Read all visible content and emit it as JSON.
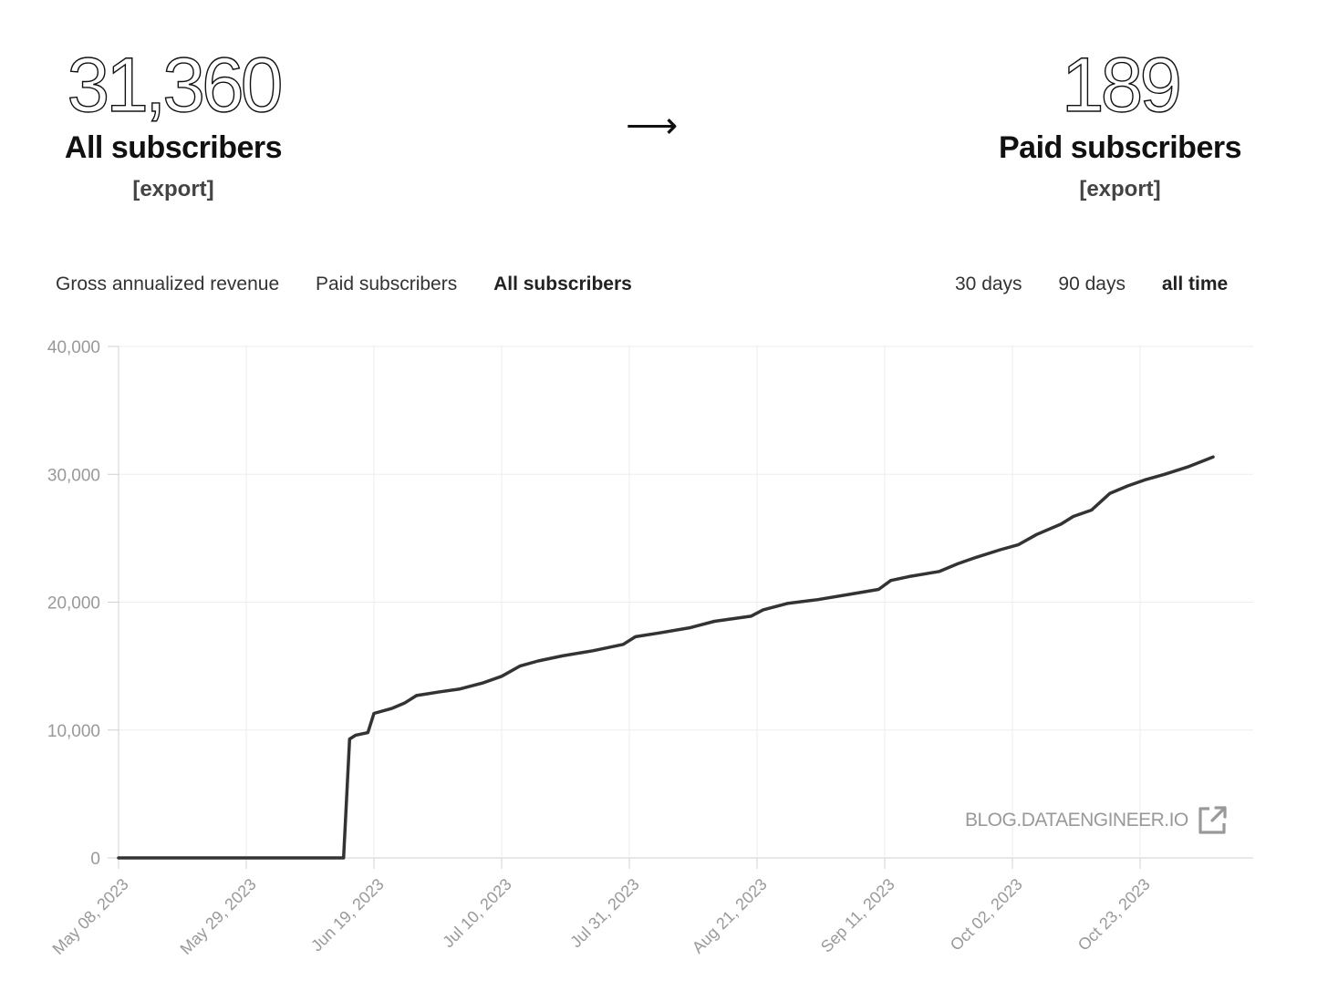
{
  "stats": {
    "all": {
      "value": "31,360",
      "label": "All subscribers",
      "export": "[export]"
    },
    "arrow": "⟶",
    "paid": {
      "value": "189",
      "label": "Paid subscribers",
      "export": "[export]"
    }
  },
  "metric_tabs": [
    "Gross annualized revenue",
    "Paid subscribers",
    "All subscribers"
  ],
  "metric_active": "All subscribers",
  "range_tabs": [
    "30 days",
    "90 days",
    "all time"
  ],
  "range_active": "all time",
  "watermark": "BLOG.DATAENGINEER.IO",
  "icons": {
    "watermark": "external-link-icon"
  },
  "colors": {
    "line": "#333333",
    "grid": "#eeeeee",
    "axis_text": "#999999"
  },
  "chart_data": {
    "type": "line",
    "x_tick_labels": [
      "May 08, 2023",
      "May 29, 2023",
      "Jun 19, 2023",
      "Jul 10, 2023",
      "Jul 31, 2023",
      "Aug 21, 2023",
      "Sep 11, 2023",
      "Oct 02, 2023",
      "Oct 23, 2023"
    ],
    "y_tick_labels": [
      "0",
      "10,000",
      "20,000",
      "30,000",
      "40,000"
    ],
    "ylim": [
      0,
      40000
    ],
    "xlim": [
      "2023-05-08",
      "2023-11-04"
    ],
    "grid": true,
    "series": [
      {
        "points": [
          [
            "2023-05-08",
            0
          ],
          [
            "2023-06-14",
            0
          ],
          [
            "2023-06-15",
            9300
          ],
          [
            "2023-06-16",
            9600
          ],
          [
            "2023-06-18",
            9800
          ],
          [
            "2023-06-19",
            11300
          ],
          [
            "2023-06-22",
            11700
          ],
          [
            "2023-06-24",
            12100
          ],
          [
            "2023-06-26",
            12700
          ],
          [
            "2023-06-30",
            13000
          ],
          [
            "2023-07-03",
            13200
          ],
          [
            "2023-07-07",
            13700
          ],
          [
            "2023-07-10",
            14200
          ],
          [
            "2023-07-13",
            15000
          ],
          [
            "2023-07-16",
            15400
          ],
          [
            "2023-07-20",
            15800
          ],
          [
            "2023-07-25",
            16200
          ],
          [
            "2023-07-30",
            16700
          ],
          [
            "2023-08-01",
            17300
          ],
          [
            "2023-08-05",
            17600
          ],
          [
            "2023-08-10",
            18000
          ],
          [
            "2023-08-14",
            18500
          ],
          [
            "2023-08-20",
            18900
          ],
          [
            "2023-08-22",
            19400
          ],
          [
            "2023-08-26",
            19900
          ],
          [
            "2023-08-31",
            20200
          ],
          [
            "2023-09-05",
            20600
          ],
          [
            "2023-09-10",
            21000
          ],
          [
            "2023-09-12",
            21700
          ],
          [
            "2023-09-15",
            22000
          ],
          [
            "2023-09-20",
            22400
          ],
          [
            "2023-09-23",
            23000
          ],
          [
            "2023-09-26",
            23500
          ],
          [
            "2023-09-30",
            24100
          ],
          [
            "2023-10-03",
            24500
          ],
          [
            "2023-10-06",
            25300
          ],
          [
            "2023-10-10",
            26100
          ],
          [
            "2023-10-12",
            26700
          ],
          [
            "2023-10-15",
            27200
          ],
          [
            "2023-10-18",
            28500
          ],
          [
            "2023-10-21",
            29100
          ],
          [
            "2023-10-24",
            29600
          ],
          [
            "2023-10-27",
            30000
          ],
          [
            "2023-10-31",
            30600
          ],
          [
            "2023-11-04",
            31360
          ]
        ]
      }
    ]
  }
}
